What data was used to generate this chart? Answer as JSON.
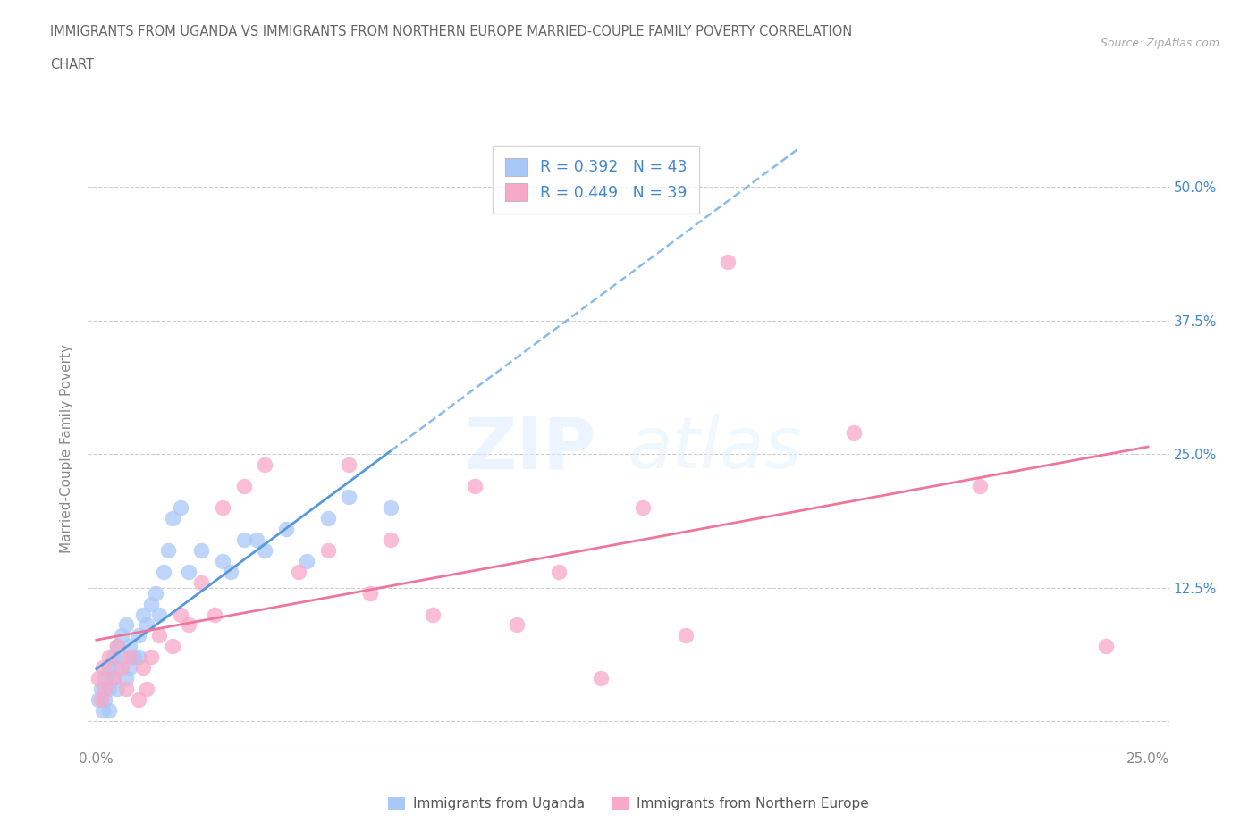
{
  "title_line1": "IMMIGRANTS FROM UGANDA VS IMMIGRANTS FROM NORTHERN EUROPE MARRIED-COUPLE FAMILY POVERTY CORRELATION",
  "title_line2": "CHART",
  "source": "Source: ZipAtlas.com",
  "ylabel": "Married-Couple Family Poverty",
  "xlim": [
    -0.002,
    0.255
  ],
  "ylim": [
    -0.025,
    0.535
  ],
  "ytick_positions": [
    0.0,
    0.125,
    0.25,
    0.375,
    0.5
  ],
  "ytick_labels_right": [
    "",
    "12.5%",
    "25.0%",
    "37.5%",
    "50.0%"
  ],
  "uganda_color": "#a8c8f8",
  "northern_europe_color": "#f8a8c8",
  "uganda_line_color": "#5599dd",
  "uganda_line_color_dashed": "#88bbee",
  "northern_europe_line_color": "#ee7799",
  "R_uganda": 0.392,
  "N_uganda": 43,
  "R_northern": 0.449,
  "N_northern": 39,
  "uganda_x": [
    0.0005,
    0.001,
    0.0015,
    0.002,
    0.002,
    0.003,
    0.003,
    0.003,
    0.004,
    0.004,
    0.005,
    0.005,
    0.005,
    0.006,
    0.006,
    0.007,
    0.007,
    0.008,
    0.008,
    0.009,
    0.01,
    0.01,
    0.011,
    0.012,
    0.013,
    0.014,
    0.015,
    0.016,
    0.017,
    0.018,
    0.02,
    0.022,
    0.025,
    0.03,
    0.032,
    0.035,
    0.038,
    0.04,
    0.045,
    0.05,
    0.055,
    0.06,
    0.07
  ],
  "uganda_y": [
    0.02,
    0.03,
    0.01,
    0.04,
    0.02,
    0.05,
    0.03,
    0.01,
    0.06,
    0.04,
    0.07,
    0.05,
    0.03,
    0.08,
    0.06,
    0.04,
    0.09,
    0.07,
    0.05,
    0.06,
    0.08,
    0.06,
    0.1,
    0.09,
    0.11,
    0.12,
    0.1,
    0.14,
    0.16,
    0.19,
    0.2,
    0.14,
    0.16,
    0.15,
    0.14,
    0.17,
    0.17,
    0.16,
    0.18,
    0.15,
    0.19,
    0.21,
    0.2
  ],
  "northern_x": [
    0.0005,
    0.001,
    0.0015,
    0.002,
    0.003,
    0.004,
    0.005,
    0.006,
    0.007,
    0.008,
    0.01,
    0.011,
    0.012,
    0.013,
    0.015,
    0.018,
    0.02,
    0.022,
    0.025,
    0.028,
    0.03,
    0.035,
    0.04,
    0.048,
    0.055,
    0.06,
    0.065,
    0.07,
    0.08,
    0.09,
    0.1,
    0.11,
    0.12,
    0.13,
    0.14,
    0.15,
    0.18,
    0.21,
    0.24
  ],
  "northern_y": [
    0.04,
    0.02,
    0.05,
    0.03,
    0.06,
    0.04,
    0.07,
    0.05,
    0.03,
    0.06,
    0.02,
    0.05,
    0.03,
    0.06,
    0.08,
    0.07,
    0.1,
    0.09,
    0.13,
    0.1,
    0.2,
    0.22,
    0.24,
    0.14,
    0.16,
    0.24,
    0.12,
    0.17,
    0.1,
    0.22,
    0.09,
    0.14,
    0.04,
    0.2,
    0.08,
    0.43,
    0.27,
    0.22,
    0.07
  ],
  "background_color": "#ffffff",
  "grid_color": "#cccccc",
  "title_color": "#666666",
  "legend_text_color": "#4488cc",
  "axis_text_color": "#888888"
}
